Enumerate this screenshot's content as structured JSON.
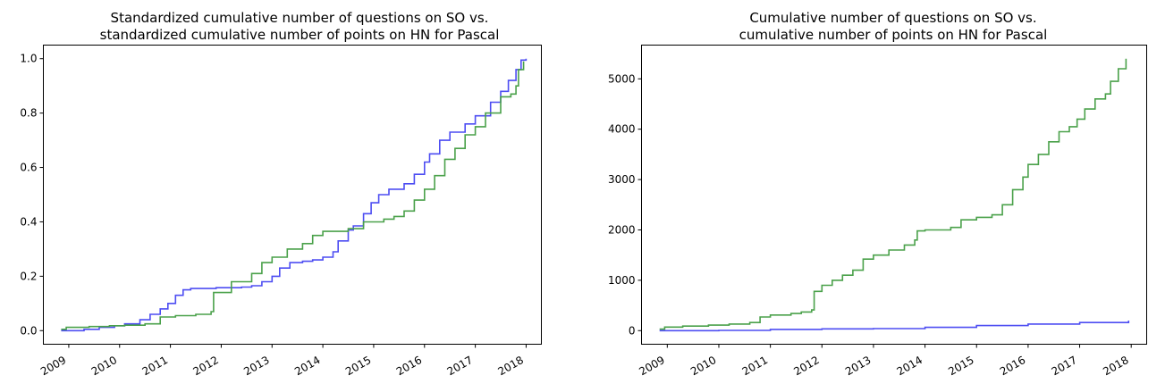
{
  "colors": {
    "so_series": "#4d4df2",
    "hn_series": "#4aa14a"
  },
  "chart_data": [
    {
      "type": "line",
      "title": "Standardized cumulative number of questions on SO vs. standardized cumulative number of points on HN for Pascal",
      "title_lines": [
        "Standardized cumulative number of questions on SO vs.",
        "standardized cumulative number of points on HN for Pascal"
      ],
      "xlabel": "",
      "ylabel": "",
      "xlim": [
        2008.5,
        2018.3
      ],
      "ylim": [
        -0.05,
        1.05
      ],
      "x_ticks": [
        "2009",
        "2010",
        "2011",
        "2012",
        "2013",
        "2014",
        "2015",
        "2016",
        "2017",
        "2018"
      ],
      "x_tick_values": [
        2009,
        2010,
        2011,
        2012,
        2013,
        2014,
        2015,
        2016,
        2017,
        2018
      ],
      "y_ticks": [
        "0.0",
        "0.2",
        "0.4",
        "0.6",
        "0.8",
        "1.0"
      ],
      "y_tick_values": [
        0,
        0.2,
        0.4,
        0.6,
        0.8,
        1.0
      ],
      "grid": false,
      "series": [
        {
          "color": "#4d4df2",
          "x": [
            2008.85,
            2009.3,
            2009.6,
            2009.9,
            2010.1,
            2010.4,
            2010.6,
            2010.8,
            2010.95,
            2011.1,
            2011.25,
            2011.4,
            2011.6,
            2011.9,
            2012.1,
            2012.4,
            2012.6,
            2012.8,
            2013.0,
            2013.15,
            2013.35,
            2013.6,
            2013.8,
            2014.0,
            2014.2,
            2014.3,
            2014.5,
            2014.6,
            2014.8,
            2014.95,
            2015.1,
            2015.3,
            2015.6,
            2015.8,
            2016.0,
            2016.1,
            2016.3,
            2016.5,
            2016.8,
            2017.0,
            2017.3,
            2017.5,
            2017.65,
            2017.8,
            2017.9,
            2018.0
          ],
          "values": [
            0.0,
            0.005,
            0.012,
            0.018,
            0.025,
            0.04,
            0.06,
            0.08,
            0.1,
            0.13,
            0.15,
            0.155,
            0.155,
            0.158,
            0.158,
            0.16,
            0.165,
            0.18,
            0.2,
            0.23,
            0.25,
            0.255,
            0.26,
            0.27,
            0.29,
            0.33,
            0.37,
            0.385,
            0.43,
            0.47,
            0.5,
            0.52,
            0.54,
            0.575,
            0.62,
            0.65,
            0.7,
            0.73,
            0.76,
            0.79,
            0.84,
            0.88,
            0.92,
            0.96,
            0.995,
            1.0
          ]
        },
        {
          "color": "#4aa14a",
          "x": [
            2008.85,
            2008.95,
            2009.4,
            2009.8,
            2010.1,
            2010.5,
            2010.8,
            2011.1,
            2011.5,
            2011.8,
            2011.85,
            2012.2,
            2012.6,
            2012.8,
            2013.0,
            2013.3,
            2013.6,
            2013.8,
            2014.0,
            2014.5,
            2014.8,
            2015.2,
            2015.4,
            2015.6,
            2015.8,
            2016.0,
            2016.2,
            2016.4,
            2016.6,
            2016.8,
            2017.0,
            2017.2,
            2017.5,
            2017.7,
            2017.8,
            2017.85,
            2017.95
          ],
          "values": [
            0.005,
            0.012,
            0.015,
            0.018,
            0.02,
            0.025,
            0.05,
            0.055,
            0.06,
            0.07,
            0.14,
            0.18,
            0.21,
            0.25,
            0.27,
            0.3,
            0.32,
            0.35,
            0.365,
            0.375,
            0.4,
            0.41,
            0.42,
            0.44,
            0.48,
            0.52,
            0.57,
            0.63,
            0.67,
            0.72,
            0.75,
            0.8,
            0.86,
            0.87,
            0.9,
            0.96,
            0.99
          ]
        }
      ]
    },
    {
      "type": "line",
      "title": "Cumulative number of questions on SO vs. cumulative number of points on HN for Pascal",
      "title_lines": [
        "Cumulative number of questions on SO vs.",
        "cumulative number of points on HN for Pascal"
      ],
      "xlabel": "",
      "ylabel": "",
      "xlim": [
        2008.5,
        2018.3
      ],
      "ylim": [
        -270,
        5670
      ],
      "x_ticks": [
        "2009",
        "2010",
        "2011",
        "2012",
        "2013",
        "2014",
        "2015",
        "2016",
        "2017",
        "2018"
      ],
      "x_tick_values": [
        2009,
        2010,
        2011,
        2012,
        2013,
        2014,
        2015,
        2016,
        2017,
        2018
      ],
      "y_ticks": [
        "0",
        "1000",
        "2000",
        "3000",
        "4000",
        "5000"
      ],
      "y_tick_values": [
        0,
        1000,
        2000,
        3000,
        4000,
        5000
      ],
      "grid": false,
      "series": [
        {
          "color": "#4d4df2",
          "x": [
            2008.85,
            2010.0,
            2011.0,
            2012.0,
            2013.0,
            2014.0,
            2015.0,
            2016.0,
            2017.0,
            2017.95
          ],
          "values": [
            0,
            5,
            25,
            35,
            40,
            65,
            100,
            130,
            160,
            200
          ]
        },
        {
          "color": "#4aa14a",
          "x": [
            2008.85,
            2008.95,
            2009.3,
            2009.8,
            2010.2,
            2010.6,
            2010.8,
            2011.0,
            2011.4,
            2011.6,
            2011.8,
            2011.85,
            2012.0,
            2012.2,
            2012.4,
            2012.6,
            2012.8,
            2013.0,
            2013.3,
            2013.6,
            2013.8,
            2013.85,
            2014.0,
            2014.5,
            2014.7,
            2015.0,
            2015.3,
            2015.5,
            2015.7,
            2015.9,
            2016.0,
            2016.2,
            2016.4,
            2016.6,
            2016.8,
            2016.95,
            2017.1,
            2017.3,
            2017.5,
            2017.6,
            2017.75,
            2017.9
          ],
          "values": [
            30,
            70,
            90,
            110,
            130,
            160,
            270,
            310,
            340,
            370,
            410,
            780,
            900,
            1000,
            1100,
            1200,
            1420,
            1500,
            1600,
            1700,
            1800,
            1980,
            2000,
            2050,
            2200,
            2250,
            2300,
            2500,
            2800,
            3050,
            3300,
            3500,
            3750,
            3950,
            4050,
            4200,
            4400,
            4600,
            4700,
            4950,
            5200,
            5400
          ]
        }
      ]
    }
  ]
}
